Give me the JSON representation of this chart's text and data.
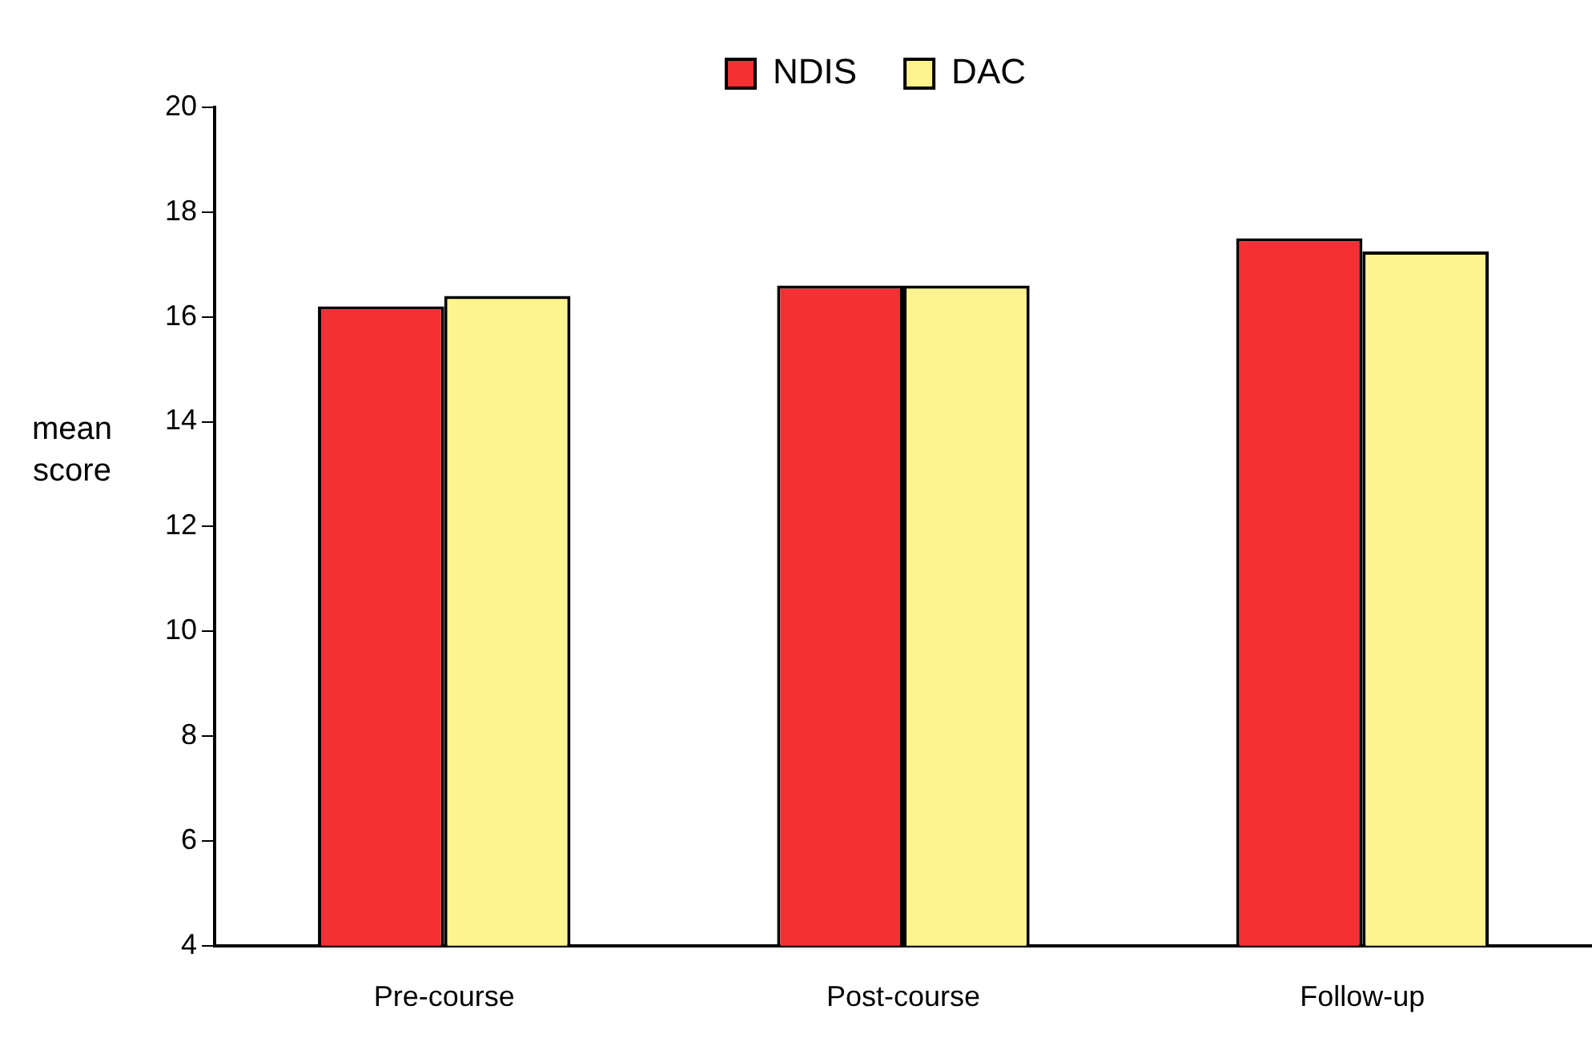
{
  "chart_data": {
    "type": "bar",
    "ylabel": "mean score",
    "categories": [
      "Pre-course",
      "Post-course",
      "Follow-up"
    ],
    "series": [
      {
        "name": "NDIS",
        "color": "#f53035",
        "values": [
          16.2,
          16.6,
          17.5
        ]
      },
      {
        "name": "DAC",
        "color": "#fdf38f",
        "values": [
          16.4,
          16.6,
          17.25
        ]
      }
    ],
    "ylim": [
      4,
      20
    ],
    "yticks": [
      4,
      6,
      8,
      10,
      12,
      14,
      16,
      18,
      20
    ],
    "grid": false,
    "legend": "top"
  }
}
